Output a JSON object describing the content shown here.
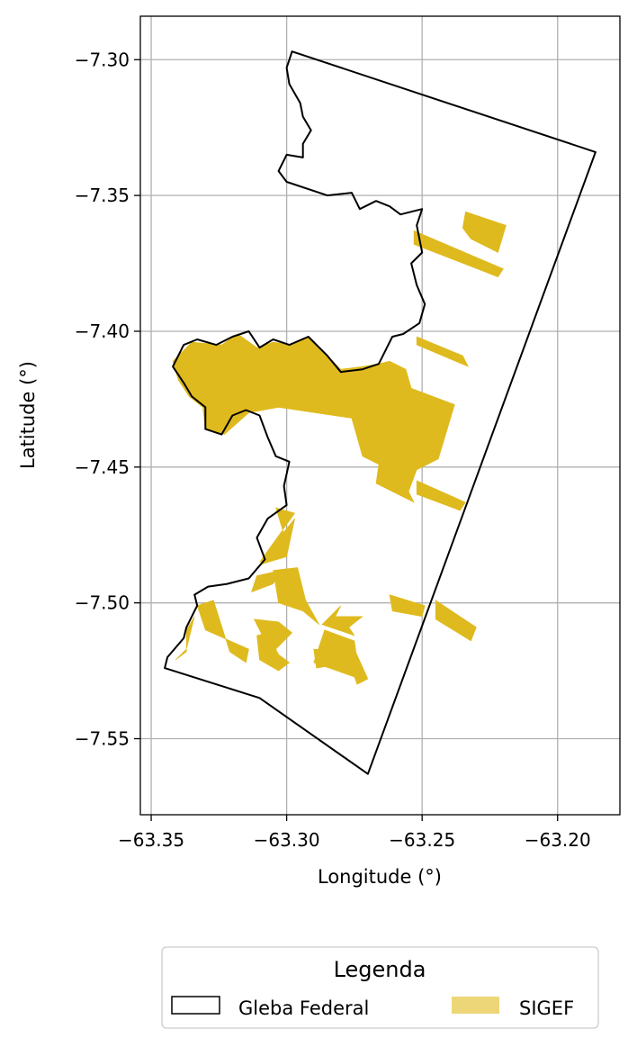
{
  "chart_data": {
    "type": "map",
    "xlabel": "Longitude (°)",
    "ylabel": "Latitude (°)",
    "xlim": [
      -63.354,
      -63.177
    ],
    "ylim": [
      -7.578,
      -7.284
    ],
    "grid": true,
    "xticks": [
      -63.35,
      -63.3,
      -63.25,
      -63.2
    ],
    "yticks": [
      -7.3,
      -7.35,
      -7.4,
      -7.45,
      -7.5,
      -7.55
    ],
    "xtick_labels": [
      "−63.35",
      "−63.30",
      "−63.25",
      "−63.20"
    ],
    "ytick_labels": [
      "−7.30",
      "−7.35",
      "−7.40",
      "−7.45",
      "−7.50",
      "−7.55"
    ],
    "legend": {
      "title": "Legenda",
      "placement": "bottom-center",
      "entries": [
        {
          "label": "Gleba Federal",
          "style": "outline",
          "edge_color": "#000000"
        },
        {
          "label": "SIGEF",
          "style": "filled",
          "color": "#DFBA1E"
        }
      ]
    },
    "layers": [
      {
        "name": "Gleba Federal",
        "kind": "outline",
        "color": "#000000",
        "polygon": [
          [
            -63.298,
            -7.297
          ],
          [
            -63.186,
            -7.334
          ],
          [
            -63.27,
            -7.563
          ],
          [
            -63.31,
            -7.535
          ],
          [
            -63.345,
            -7.524
          ],
          [
            -63.344,
            -7.52
          ],
          [
            -63.338,
            -7.513
          ],
          [
            -63.337,
            -7.509
          ],
          [
            -63.333,
            -7.501
          ],
          [
            -63.334,
            -7.497
          ],
          [
            -63.329,
            -7.494
          ],
          [
            -63.322,
            -7.493
          ],
          [
            -63.314,
            -7.491
          ],
          [
            -63.308,
            -7.484
          ],
          [
            -63.311,
            -7.476
          ],
          [
            -63.307,
            -7.469
          ],
          [
            -63.3,
            -7.464
          ],
          [
            -63.301,
            -7.457
          ],
          [
            -63.299,
            -7.448
          ],
          [
            -63.304,
            -7.446
          ],
          [
            -63.307,
            -7.439
          ],
          [
            -63.31,
            -7.431
          ],
          [
            -63.315,
            -7.429
          ],
          [
            -63.32,
            -7.431
          ],
          [
            -63.324,
            -7.438
          ],
          [
            -63.33,
            -7.436
          ],
          [
            -63.33,
            -7.428
          ],
          [
            -63.335,
            -7.424
          ],
          [
            -63.338,
            -7.419
          ],
          [
            -63.342,
            -7.413
          ],
          [
            -63.338,
            -7.405
          ],
          [
            -63.333,
            -7.403
          ],
          [
            -63.326,
            -7.405
          ],
          [
            -63.32,
            -7.402
          ],
          [
            -63.314,
            -7.4
          ],
          [
            -63.31,
            -7.406
          ],
          [
            -63.305,
            -7.403
          ],
          [
            -63.299,
            -7.405
          ],
          [
            -63.292,
            -7.402
          ],
          [
            -63.285,
            -7.409
          ],
          [
            -63.28,
            -7.415
          ],
          [
            -63.272,
            -7.414
          ],
          [
            -63.266,
            -7.412
          ],
          [
            -63.261,
            -7.402
          ],
          [
            -63.257,
            -7.401
          ],
          [
            -63.251,
            -7.397
          ],
          [
            -63.249,
            -7.39
          ],
          [
            -63.252,
            -7.383
          ],
          [
            -63.254,
            -7.375
          ],
          [
            -63.25,
            -7.371
          ],
          [
            -63.252,
            -7.361
          ],
          [
            -63.25,
            -7.355
          ],
          [
            -63.258,
            -7.357
          ],
          [
            -63.262,
            -7.354
          ],
          [
            -63.267,
            -7.352
          ],
          [
            -63.273,
            -7.355
          ],
          [
            -63.276,
            -7.349
          ],
          [
            -63.285,
            -7.35
          ],
          [
            -63.3,
            -7.345
          ],
          [
            -63.303,
            -7.341
          ],
          [
            -63.3,
            -7.335
          ],
          [
            -63.294,
            -7.336
          ],
          [
            -63.294,
            -7.331
          ],
          [
            -63.291,
            -7.326
          ],
          [
            -63.294,
            -7.321
          ],
          [
            -63.295,
            -7.316
          ],
          [
            -63.299,
            -7.309
          ],
          [
            -63.3,
            -7.303
          ]
        ]
      },
      {
        "name": "SIGEF",
        "kind": "filled",
        "color": "#DFBA1E",
        "polygons": [
          [
            [
              -63.342,
              -7.411
            ],
            [
              -63.335,
              -7.404
            ],
            [
              -63.324,
              -7.405
            ],
            [
              -63.318,
              -7.401
            ],
            [
              -63.311,
              -7.406
            ],
            [
              -63.305,
              -7.404
            ],
            [
              -63.298,
              -7.405
            ],
            [
              -63.292,
              -7.402
            ],
            [
              -63.285,
              -7.409
            ],
            [
              -63.28,
              -7.414
            ],
            [
              -63.272,
              -7.413
            ],
            [
              -63.266,
              -7.412
            ],
            [
              -63.262,
              -7.411
            ],
            [
              -63.256,
              -7.414
            ],
            [
              -63.254,
              -7.421
            ],
            [
              -63.238,
              -7.427
            ],
            [
              -63.244,
              -7.447
            ],
            [
              -63.252,
              -7.451
            ],
            [
              -63.255,
              -7.459
            ],
            [
              -63.253,
              -7.463
            ],
            [
              -63.267,
              -7.456
            ],
            [
              -63.266,
              -7.449
            ],
            [
              -63.272,
              -7.446
            ],
            [
              -63.276,
              -7.432
            ],
            [
              -63.303,
              -7.428
            ],
            [
              -63.314,
              -7.43
            ],
            [
              -63.323,
              -7.438
            ],
            [
              -63.33,
              -7.436
            ],
            [
              -63.331,
              -7.428
            ],
            [
              -63.336,
              -7.424
            ],
            [
              -63.34,
              -7.418
            ]
          ],
          [
            [
              -63.234,
              -7.356
            ],
            [
              -63.219,
              -7.361
            ],
            [
              -63.222,
              -7.371
            ],
            [
              -63.232,
              -7.366
            ],
            [
              -63.235,
              -7.362
            ]
          ],
          [
            [
              -63.253,
              -7.363
            ],
            [
              -63.22,
              -7.377
            ],
            [
              -63.222,
              -7.38
            ],
            [
              -63.253,
              -7.368
            ]
          ],
          [
            [
              -63.252,
              -7.402
            ],
            [
              -63.235,
              -7.409
            ],
            [
              -63.233,
              -7.413
            ],
            [
              -63.252,
              -7.405
            ]
          ],
          [
            [
              -63.252,
              -7.455
            ],
            [
              -63.234,
              -7.463
            ],
            [
              -63.236,
              -7.466
            ],
            [
              -63.252,
              -7.46
            ]
          ],
          [
            [
              -63.304,
              -7.465
            ],
            [
              -63.297,
              -7.467
            ],
            [
              -63.31,
              -7.485
            ],
            [
              -63.3,
              -7.478
            ]
          ],
          [
            [
              -63.297,
              -7.469
            ],
            [
              -63.3,
              -7.483
            ],
            [
              -63.31,
              -7.486
            ],
            [
              -63.306,
              -7.48
            ]
          ],
          [
            [
              -63.311,
              -7.49
            ],
            [
              -63.302,
              -7.488
            ],
            [
              -63.305,
              -7.493
            ],
            [
              -63.313,
              -7.496
            ]
          ],
          [
            [
              -63.305,
              -7.488
            ],
            [
              -63.296,
              -7.487
            ],
            [
              -63.293,
              -7.499
            ],
            [
              -63.288,
              -7.508
            ],
            [
              -63.294,
              -7.503
            ],
            [
              -63.303,
              -7.5
            ]
          ],
          [
            [
              -63.287,
              -7.508
            ],
            [
              -63.28,
              -7.501
            ],
            [
              -63.282,
              -7.505
            ],
            [
              -63.272,
              -7.505
            ],
            [
              -63.277,
              -7.509
            ],
            [
              -63.275,
              -7.512
            ]
          ],
          [
            [
              -63.245,
              -7.499
            ],
            [
              -63.23,
              -7.509
            ],
            [
              -63.232,
              -7.514
            ],
            [
              -63.245,
              -7.506
            ]
          ],
          [
            [
              -63.262,
              -7.497
            ],
            [
              -63.249,
              -7.501
            ],
            [
              -63.25,
              -7.505
            ],
            [
              -63.261,
              -7.503
            ]
          ],
          [
            [
              -63.333,
              -7.501
            ],
            [
              -63.327,
              -7.499
            ],
            [
              -63.321,
              -7.518
            ],
            [
              -63.315,
              -7.522
            ],
            [
              -63.314,
              -7.517
            ],
            [
              -63.33,
              -7.51
            ]
          ],
          [
            [
              -63.312,
              -7.506
            ],
            [
              -63.303,
              -7.507
            ],
            [
              -63.298,
              -7.511
            ],
            [
              -63.305,
              -7.518
            ],
            [
              -63.308,
              -7.514
            ]
          ],
          [
            [
              -63.311,
              -7.512
            ],
            [
              -63.307,
              -7.511
            ],
            [
              -63.303,
              -7.519
            ],
            [
              -63.299,
              -7.522
            ],
            [
              -63.303,
              -7.525
            ],
            [
              -63.31,
              -7.521
            ]
          ],
          [
            [
              -63.337,
              -7.51
            ],
            [
              -63.334,
              -7.505
            ],
            [
              -63.337,
              -7.517
            ],
            [
              -63.341,
              -7.521
            ],
            [
              -63.337,
              -7.518
            ]
          ],
          [
            [
              -63.286,
              -7.51
            ],
            [
              -63.275,
              -7.514
            ],
            [
              -63.273,
              -7.528
            ],
            [
              -63.29,
              -7.522
            ]
          ],
          [
            [
              -63.29,
              -7.517
            ],
            [
              -63.279,
              -7.518
            ],
            [
              -63.283,
              -7.523
            ],
            [
              -63.289,
              -7.524
            ]
          ],
          [
            [
              -63.278,
              -7.519
            ],
            [
              -63.275,
              -7.517
            ],
            [
              -63.27,
              -7.528
            ],
            [
              -63.274,
              -7.53
            ]
          ]
        ]
      }
    ]
  }
}
